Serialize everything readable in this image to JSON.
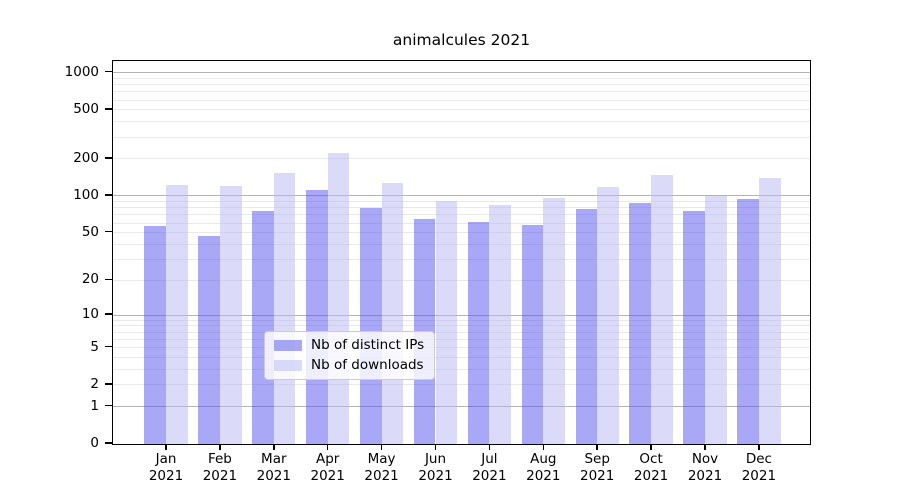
{
  "title": "animalcules 2021",
  "chart_data": {
    "type": "bar",
    "title": "animalcules 2021",
    "scale": "log1p",
    "grid": "horizontal",
    "categories": [
      "Jan",
      "Feb",
      "Mar",
      "Apr",
      "May",
      "Jun",
      "Jul",
      "Aug",
      "Sep",
      "Oct",
      "Nov",
      "Dec"
    ],
    "category_year": "2021",
    "series": [
      {
        "name": "Nb of distinct IPs",
        "color": "#5151ee",
        "alpha": 0.5,
        "composited_color": "#a8a8f6",
        "values": [
          57,
          47,
          75,
          112,
          79,
          65,
          61,
          58,
          78,
          87,
          75,
          95
        ]
      },
      {
        "name": "Nb of downloads",
        "color": "#b8b8f4",
        "alpha": 0.5,
        "composited_color": "#dcdcfa",
        "values": [
          124,
          120,
          153,
          225,
          128,
          91,
          84,
          97,
          119,
          148,
          100,
          140
        ]
      }
    ],
    "yticks": [
      0,
      1,
      2,
      5,
      10,
      20,
      50,
      100,
      200,
      500,
      1000
    ],
    "major_gridlines": [
      1,
      10,
      100,
      1000
    ],
    "minor_gridlines": [
      2,
      3,
      4,
      5,
      6,
      7,
      8,
      9,
      20,
      30,
      40,
      50,
      60,
      70,
      80,
      90,
      200,
      300,
      400,
      500,
      600,
      700,
      800,
      900
    ],
    "ylim": [
      0,
      1220
    ],
    "xlabel": "",
    "ylabel": "",
    "legend_position": "lower center",
    "colors": {
      "major_grid": "#b3b3b3",
      "minor_grid": "#e9e9e9",
      "spine": "#000000",
      "legend_border": "#cccccc",
      "background": "#ffffff"
    }
  }
}
